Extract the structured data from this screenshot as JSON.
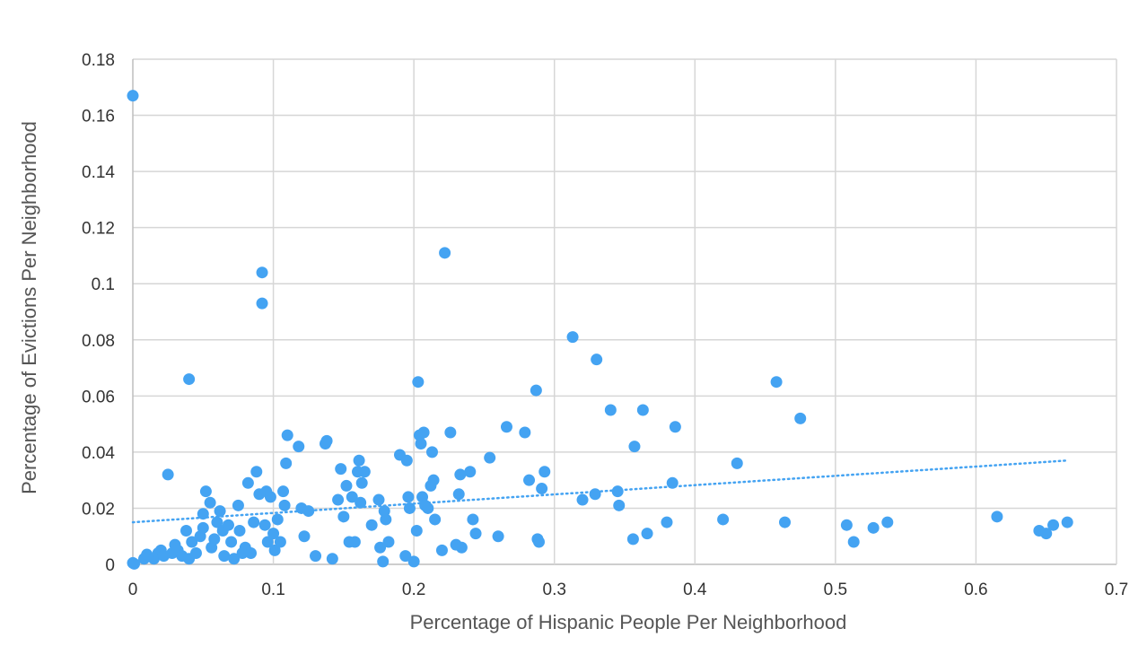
{
  "chart_data": {
    "type": "scatter",
    "xlabel": "Percentage of Hispanic People Per Neighborhood",
    "ylabel": "Percentage of Evictions Per Neighborhood",
    "xlim": [
      0,
      0.7
    ],
    "ylim": [
      0,
      0.18
    ],
    "x_ticks": [
      "0",
      "0.1",
      "0.2",
      "0.3",
      "0.4",
      "0.5",
      "0.6",
      "0.7"
    ],
    "y_ticks": [
      "0",
      "0.02",
      "0.04",
      "0.06",
      "0.08",
      "0.1",
      "0.12",
      "0.14",
      "0.16",
      "0.18"
    ],
    "grid": true,
    "legend": "none",
    "point_color": "#44a3f2",
    "trendline": {
      "style": "dotted",
      "color": "#44a3f2",
      "x": [
        0,
        0.665
      ],
      "y": [
        0.015,
        0.037
      ]
    },
    "points": [
      [
        0,
        0.167
      ],
      [
        0,
        0.0005
      ],
      [
        0.001,
        0.0002
      ],
      [
        0.008,
        0.002
      ],
      [
        0.01,
        0.0035
      ],
      [
        0.015,
        0.002
      ],
      [
        0.018,
        0.004
      ],
      [
        0.02,
        0.005
      ],
      [
        0.022,
        0.003
      ],
      [
        0.025,
        0.032
      ],
      [
        0.028,
        0.004
      ],
      [
        0.03,
        0.007
      ],
      [
        0.032,
        0.005
      ],
      [
        0.035,
        0.003
      ],
      [
        0.038,
        0.012
      ],
      [
        0.04,
        0.066
      ],
      [
        0.04,
        0.002
      ],
      [
        0.042,
        0.008
      ],
      [
        0.045,
        0.004
      ],
      [
        0.048,
        0.01
      ],
      [
        0.05,
        0.018
      ],
      [
        0.05,
        0.013
      ],
      [
        0.052,
        0.026
      ],
      [
        0.055,
        0.022
      ],
      [
        0.056,
        0.006
      ],
      [
        0.058,
        0.009
      ],
      [
        0.06,
        0.015
      ],
      [
        0.062,
        0.019
      ],
      [
        0.064,
        0.012
      ],
      [
        0.065,
        0.003
      ],
      [
        0.068,
        0.014
      ],
      [
        0.07,
        0.008
      ],
      [
        0.072,
        0.002
      ],
      [
        0.075,
        0.021
      ],
      [
        0.076,
        0.012
      ],
      [
        0.078,
        0.004
      ],
      [
        0.08,
        0.006
      ],
      [
        0.082,
        0.029
      ],
      [
        0.084,
        0.004
      ],
      [
        0.086,
        0.015
      ],
      [
        0.088,
        0.033
      ],
      [
        0.09,
        0.025
      ],
      [
        0.092,
        0.104
      ],
      [
        0.092,
        0.093
      ],
      [
        0.094,
        0.014
      ],
      [
        0.095,
        0.026
      ],
      [
        0.096,
        0.008
      ],
      [
        0.098,
        0.024
      ],
      [
        0.1,
        0.011
      ],
      [
        0.101,
        0.005
      ],
      [
        0.103,
        0.016
      ],
      [
        0.105,
        0.008
      ],
      [
        0.107,
        0.026
      ],
      [
        0.108,
        0.021
      ],
      [
        0.109,
        0.036
      ],
      [
        0.11,
        0.046
      ],
      [
        0.118,
        0.042
      ],
      [
        0.12,
        0.02
      ],
      [
        0.122,
        0.01
      ],
      [
        0.125,
        0.019
      ],
      [
        0.13,
        0.003
      ],
      [
        0.137,
        0.043
      ],
      [
        0.138,
        0.044
      ],
      [
        0.142,
        0.002
      ],
      [
        0.146,
        0.023
      ],
      [
        0.148,
        0.034
      ],
      [
        0.15,
        0.017
      ],
      [
        0.152,
        0.028
      ],
      [
        0.154,
        0.008
      ],
      [
        0.156,
        0.024
      ],
      [
        0.158,
        0.008
      ],
      [
        0.16,
        0.033
      ],
      [
        0.161,
        0.037
      ],
      [
        0.162,
        0.022
      ],
      [
        0.163,
        0.029
      ],
      [
        0.165,
        0.033
      ],
      [
        0.17,
        0.014
      ],
      [
        0.175,
        0.023
      ],
      [
        0.176,
        0.006
      ],
      [
        0.178,
        0.001
      ],
      [
        0.179,
        0.019
      ],
      [
        0.18,
        0.016
      ],
      [
        0.182,
        0.008
      ],
      [
        0.19,
        0.039
      ],
      [
        0.194,
        0.003
      ],
      [
        0.195,
        0.037
      ],
      [
        0.196,
        0.024
      ],
      [
        0.197,
        0.02
      ],
      [
        0.2,
        0.001
      ],
      [
        0.202,
        0.012
      ],
      [
        0.203,
        0.065
      ],
      [
        0.204,
        0.046
      ],
      [
        0.205,
        0.043
      ],
      [
        0.206,
        0.024
      ],
      [
        0.207,
        0.047
      ],
      [
        0.208,
        0.021
      ],
      [
        0.21,
        0.02
      ],
      [
        0.212,
        0.028
      ],
      [
        0.213,
        0.04
      ],
      [
        0.214,
        0.03
      ],
      [
        0.215,
        0.016
      ],
      [
        0.22,
        0.005
      ],
      [
        0.222,
        0.111
      ],
      [
        0.226,
        0.047
      ],
      [
        0.23,
        0.007
      ],
      [
        0.232,
        0.025
      ],
      [
        0.233,
        0.032
      ],
      [
        0.234,
        0.006
      ],
      [
        0.24,
        0.033
      ],
      [
        0.242,
        0.016
      ],
      [
        0.244,
        0.011
      ],
      [
        0.254,
        0.038
      ],
      [
        0.26,
        0.01
      ],
      [
        0.266,
        0.049
      ],
      [
        0.279,
        0.047
      ],
      [
        0.282,
        0.03
      ],
      [
        0.287,
        0.062
      ],
      [
        0.288,
        0.009
      ],
      [
        0.289,
        0.008
      ],
      [
        0.291,
        0.027
      ],
      [
        0.293,
        0.033
      ],
      [
        0.313,
        0.081
      ],
      [
        0.32,
        0.023
      ],
      [
        0.329,
        0.025
      ],
      [
        0.33,
        0.073
      ],
      [
        0.34,
        0.055
      ],
      [
        0.345,
        0.026
      ],
      [
        0.346,
        0.021
      ],
      [
        0.356,
        0.009
      ],
      [
        0.357,
        0.042
      ],
      [
        0.363,
        0.055
      ],
      [
        0.366,
        0.011
      ],
      [
        0.38,
        0.015
      ],
      [
        0.384,
        0.029
      ],
      [
        0.386,
        0.049
      ],
      [
        0.42,
        0.016
      ],
      [
        0.43,
        0.036
      ],
      [
        0.458,
        0.065
      ],
      [
        0.464,
        0.015
      ],
      [
        0.475,
        0.052
      ],
      [
        0.508,
        0.014
      ],
      [
        0.513,
        0.008
      ],
      [
        0.527,
        0.013
      ],
      [
        0.537,
        0.015
      ],
      [
        0.615,
        0.017
      ],
      [
        0.645,
        0.012
      ],
      [
        0.65,
        0.011
      ],
      [
        0.655,
        0.014
      ],
      [
        0.665,
        0.015
      ]
    ]
  }
}
